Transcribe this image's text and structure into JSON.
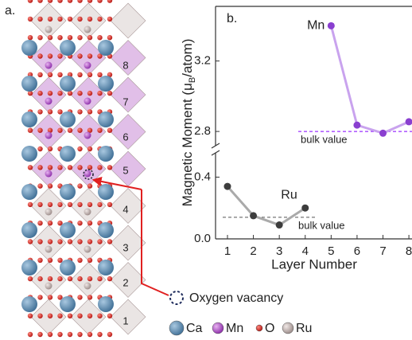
{
  "structure": {
    "label": "a.",
    "layers": [
      "1",
      "2",
      "3",
      "4",
      "5",
      "6",
      "7",
      "8"
    ],
    "annotation": "Oxygen vacancy",
    "legend": [
      {
        "name": "Ca",
        "color": "#4a7fa8"
      },
      {
        "name": "Mn",
        "color": "#9a3fc8"
      },
      {
        "name": "O",
        "color": "#d8201c"
      },
      {
        "name": "Ru",
        "color": "#8c8c8c"
      }
    ]
  },
  "chart_data": {
    "type": "line",
    "label": "b.",
    "xlabel": "Layer Number",
    "ylabel": [
      "Magnetic Moment (μ",
      "B",
      "/atom)"
    ],
    "xlim": [
      0.54,
      8.12
    ],
    "xticks": [
      1,
      2,
      3,
      4,
      5,
      6,
      7,
      8
    ],
    "ylim": [
      0,
      0.49
    ],
    "yticks": [
      {
        "value": 0,
        "label": "0.0"
      },
      0.4
    ],
    "y2lim": [
      2.71,
      3.51
    ],
    "y2ticks": [
      2.8,
      3.2
    ],
    "broken_axis": true,
    "series": [
      {
        "name": "Ru",
        "color": "#aaaaaa",
        "marker_color": "#3d3d3d",
        "axis": "y",
        "x": [
          1,
          2,
          3,
          4
        ],
        "values": [
          0.34,
          0.15,
          0.09,
          0.2
        ]
      },
      {
        "name": "Mn",
        "color": "#c9a3ee",
        "marker_color": "#8a3fd0",
        "axis": "y2",
        "x": [
          5,
          6,
          7,
          8
        ],
        "values": [
          3.4,
          2.836,
          2.79,
          2.855
        ]
      }
    ],
    "annotations": [
      {
        "text": "bulk value",
        "value": 0.14,
        "axis": "y",
        "color": "#777777"
      },
      {
        "text": "bulk value",
        "value": 2.8,
        "axis": "y2",
        "color": "#9b30ff"
      }
    ]
  }
}
